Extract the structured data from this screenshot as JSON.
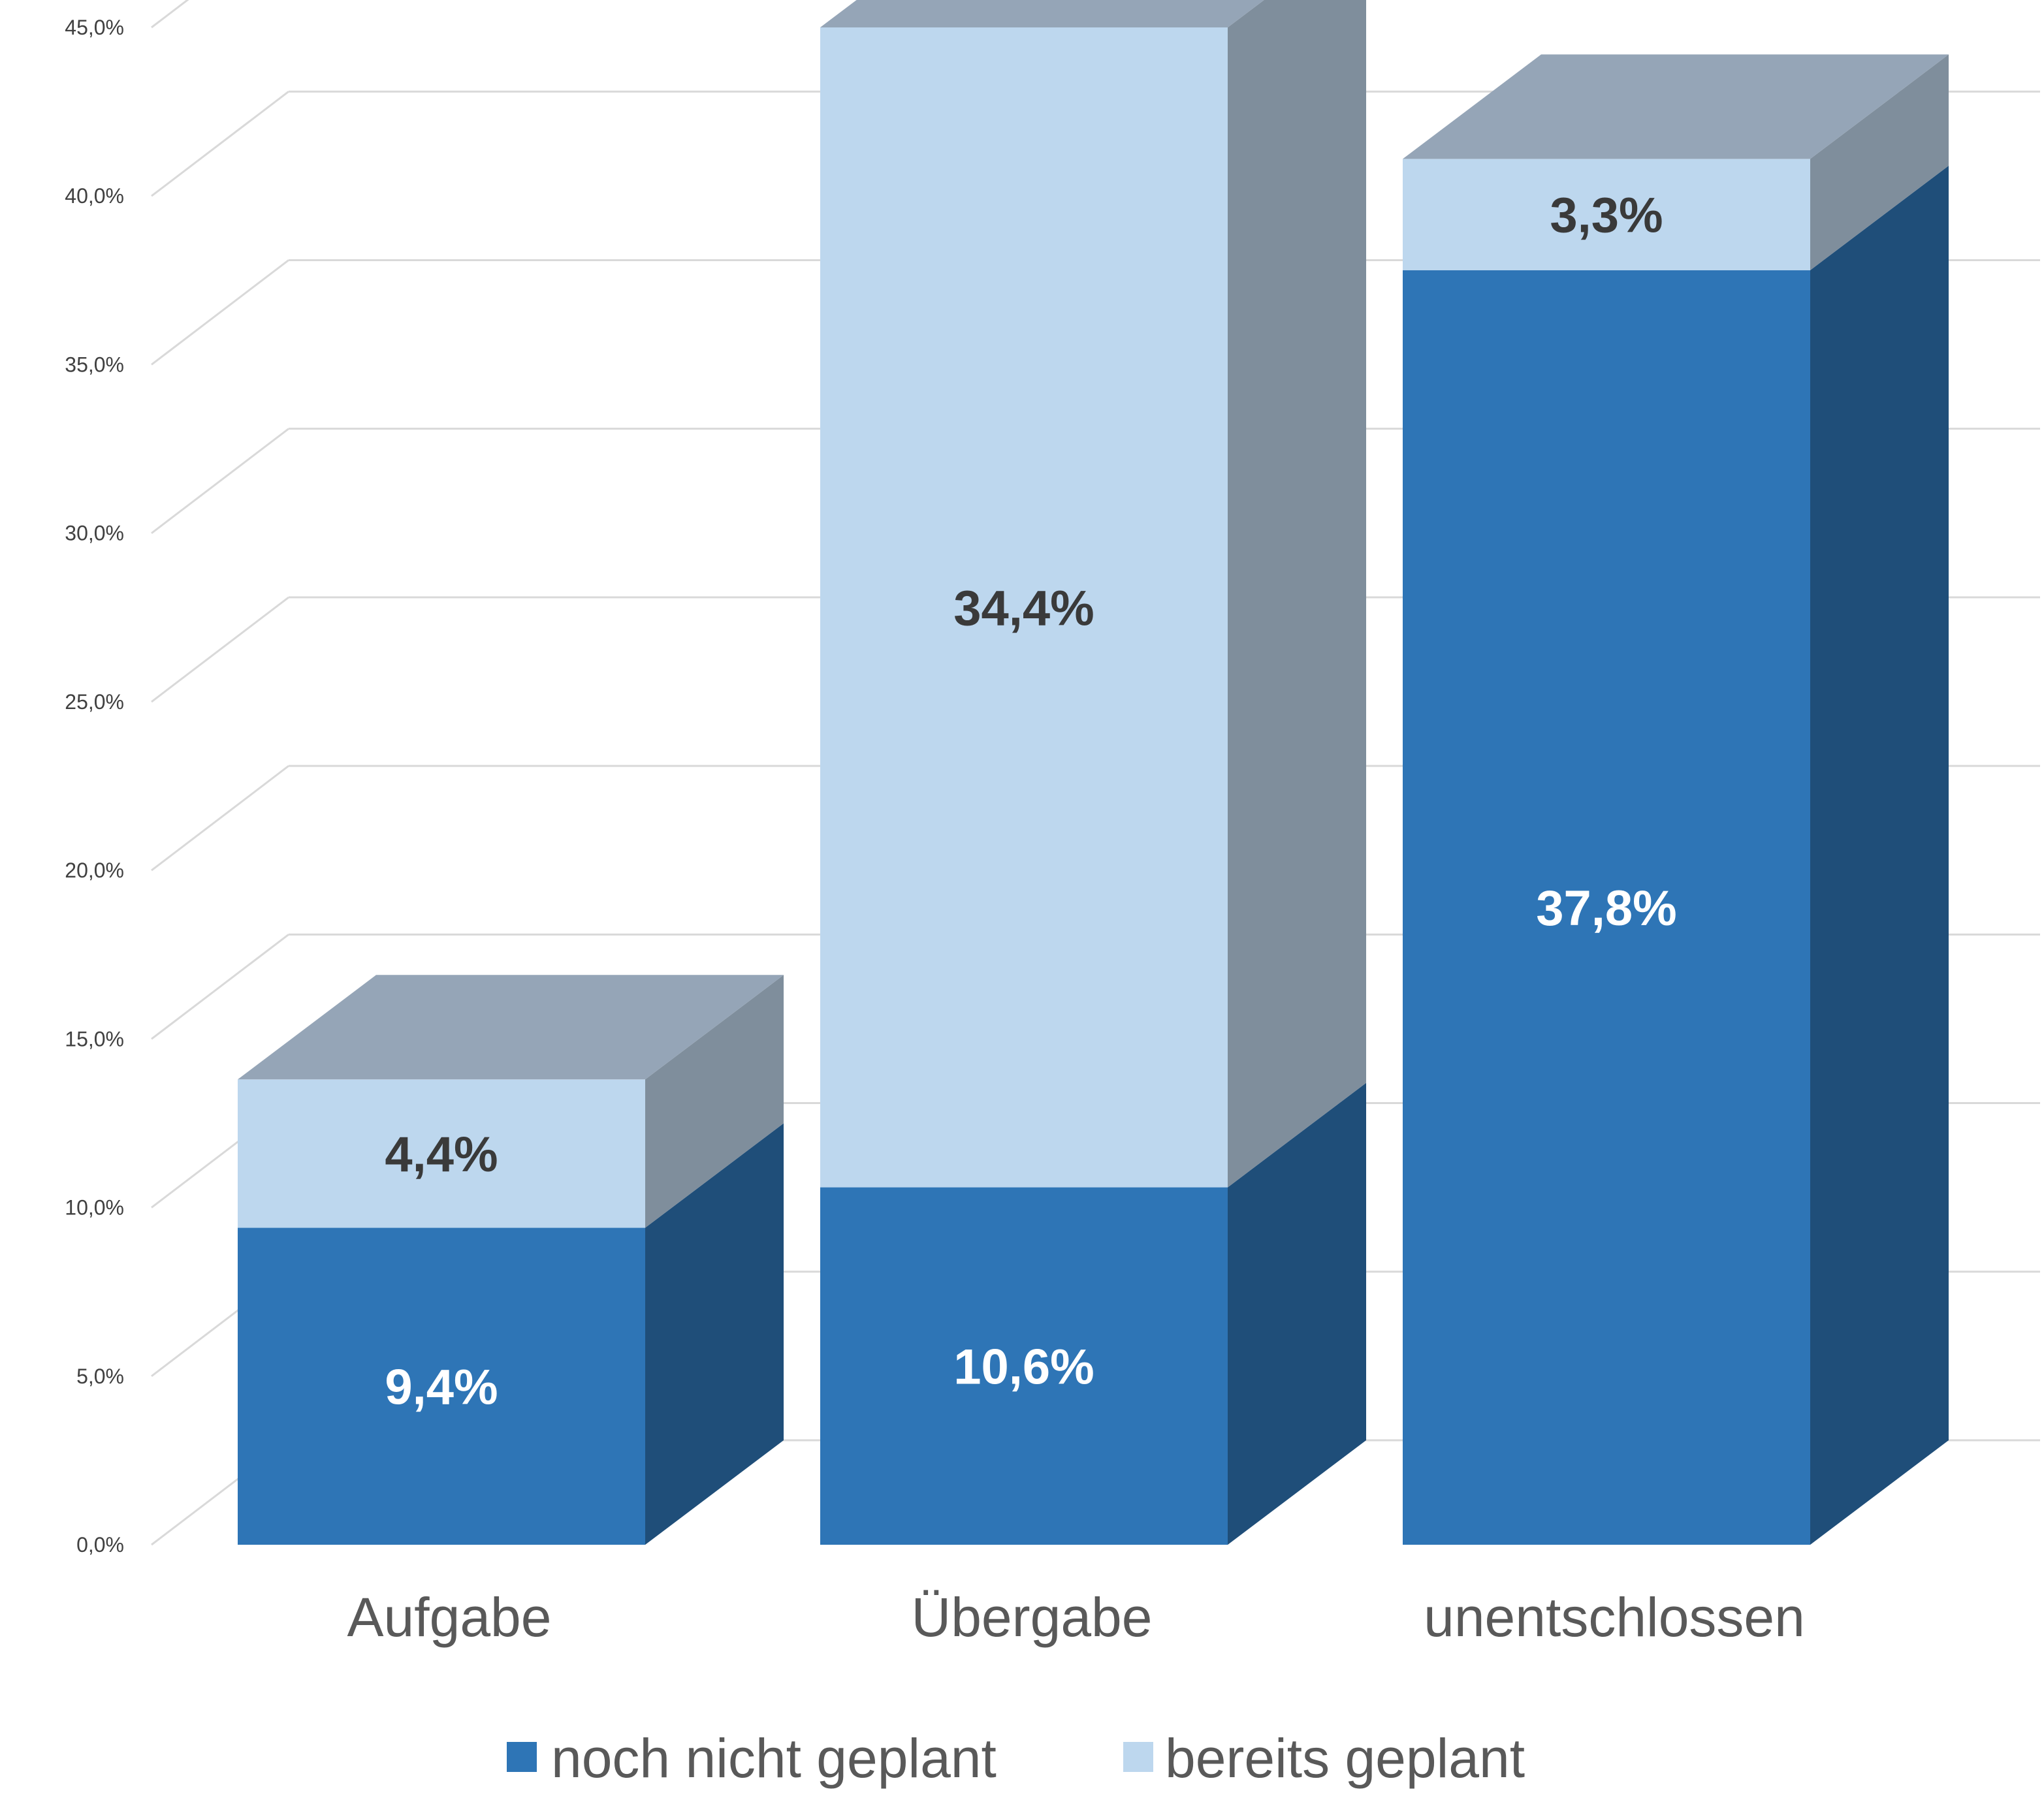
{
  "chart_data": {
    "type": "bar",
    "stacked": true,
    "three_d": true,
    "categories": [
      "Aufgabe",
      "Übergabe",
      "unentschlossen"
    ],
    "series": [
      {
        "name": "noch nicht geplant",
        "values": [
          9.4,
          10.6,
          37.8
        ],
        "labels": [
          "9,4%",
          "10,6%",
          "37,8%"
        ],
        "color": "#2e75b6",
        "label_color": "#ffffff"
      },
      {
        "name": "bereits geplant",
        "values": [
          4.4,
          34.4,
          3.3
        ],
        "labels": [
          "4,4%",
          "34,4%",
          "3,3%"
        ],
        "color": "#bdd7ee",
        "label_color": "#3a3a3a"
      }
    ],
    "ylim": [
      0,
      45
    ],
    "y_ticks": [
      "0,0%",
      "5,0%",
      "10,0%",
      "15,0%",
      "20,0%",
      "25,0%",
      "30,0%",
      "35,0%",
      "40,0%",
      "45,0%"
    ],
    "grid": true,
    "legend": "bottom"
  },
  "colors": {
    "grid": "#d9d9d9",
    "top_face": "#95a5b7",
    "side_shadow": "#1f4e79",
    "side_light": "#7f8e9c"
  }
}
